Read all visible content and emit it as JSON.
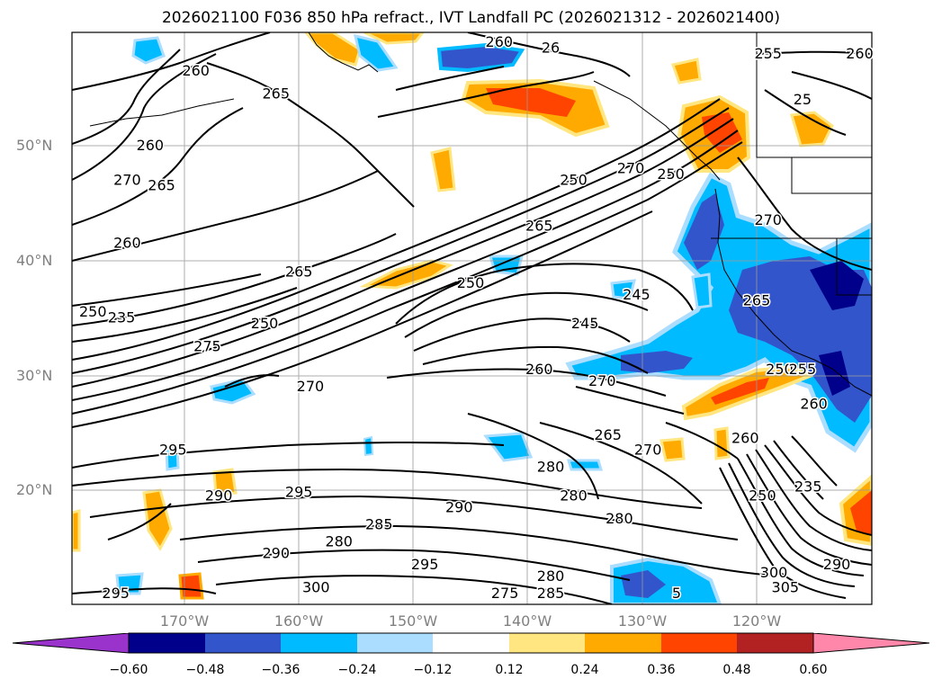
{
  "title": "2026021100 F036 850 hPa refract., IVT Landfall PC (2026021312 - 2026021400)",
  "lat_labels": [
    "50°N",
    "40°N",
    "30°N",
    "20°N"
  ],
  "lon_labels": [
    "170°W",
    "160°W",
    "150°W",
    "140°W",
    "130°W",
    "120°W"
  ],
  "colorbar": {
    "ticks": [
      "−0.60",
      "−0.48",
      "−0.36",
      "−0.24",
      "−0.12",
      "0.12",
      "0.24",
      "0.36",
      "0.48",
      "0.60"
    ],
    "colors": [
      "#9933cc",
      "#00008b",
      "#3355cc",
      "#00bbff",
      "#aaddff",
      "#ffffff",
      "#ffe680",
      "#ffaa00",
      "#ff4400",
      "#b22222",
      "#ff88aa"
    ]
  },
  "contour_labels": [
    {
      "text": "260",
      "lon": -169,
      "lat": 56.5
    },
    {
      "text": "265",
      "lon": -162,
      "lat": 54.5
    },
    {
      "text": "260",
      "lon": -173,
      "lat": 50
    },
    {
      "text": "270",
      "lon": -175,
      "lat": 47
    },
    {
      "text": "265",
      "lon": -172,
      "lat": 46.5
    },
    {
      "text": "260",
      "lon": -175,
      "lat": 41.5
    },
    {
      "text": "265",
      "lon": -160,
      "lat": 39
    },
    {
      "text": "250",
      "lon": -178,
      "lat": 35.5
    },
    {
      "text": "235",
      "lon": -175.5,
      "lat": 35
    },
    {
      "text": "250",
      "lon": -163,
      "lat": 34.5
    },
    {
      "text": "275",
      "lon": -168,
      "lat": 32.5
    },
    {
      "text": "270",
      "lon": -159,
      "lat": 29
    },
    {
      "text": "295",
      "lon": -171,
      "lat": 23.5
    },
    {
      "text": "290",
      "lon": -167,
      "lat": 19.5
    },
    {
      "text": "295",
      "lon": -160,
      "lat": 19.8
    },
    {
      "text": "285",
      "lon": -153,
      "lat": 17
    },
    {
      "text": "280",
      "lon": -156.5,
      "lat": 15.5
    },
    {
      "text": "290",
      "lon": -162,
      "lat": 14.5
    },
    {
      "text": "290",
      "lon": -146,
      "lat": 18.5
    },
    {
      "text": "295",
      "lon": -149,
      "lat": 13.5
    },
    {
      "text": "300",
      "lon": -158.5,
      "lat": 11.5
    },
    {
      "text": "295",
      "lon": -176,
      "lat": 11
    },
    {
      "text": "275",
      "lon": -142,
      "lat": 11
    },
    {
      "text": "280",
      "lon": -138,
      "lat": 12.5
    },
    {
      "text": "285",
      "lon": -138,
      "lat": 11
    },
    {
      "text": "280",
      "lon": -136,
      "lat": 19.5
    },
    {
      "text": "280",
      "lon": -138,
      "lat": 22
    },
    {
      "text": "280",
      "lon": -132,
      "lat": 17.5
    },
    {
      "text": "265",
      "lon": -133,
      "lat": 24.8
    },
    {
      "text": "270",
      "lon": -129.5,
      "lat": 23.5
    },
    {
      "text": "270",
      "lon": -133.5,
      "lat": 29.5
    },
    {
      "text": "260",
      "lon": -139,
      "lat": 30.5
    },
    {
      "text": "245",
      "lon": -135,
      "lat": 34.5
    },
    {
      "text": "245",
      "lon": -130.5,
      "lat": 37
    },
    {
      "text": "250",
      "lon": -145,
      "lat": 38
    },
    {
      "text": "265",
      "lon": -139,
      "lat": 43
    },
    {
      "text": "250",
      "lon": -136,
      "lat": 47
    },
    {
      "text": "270",
      "lon": -131,
      "lat": 48
    },
    {
      "text": "250",
      "lon": -127.5,
      "lat": 47.5
    },
    {
      "text": "260",
      "lon": -142.5,
      "lat": 59
    },
    {
      "text": "26",
      "lon": -138,
      "lat": 58.5
    },
    {
      "text": "255",
      "lon": -119,
      "lat": 58
    },
    {
      "text": "260",
      "lon": -111,
      "lat": 58
    },
    {
      "text": "25",
      "lon": -116,
      "lat": 54
    },
    {
      "text": "270",
      "lon": -119,
      "lat": 43.5
    },
    {
      "text": "265",
      "lon": -120,
      "lat": 36.5
    },
    {
      "text": "250",
      "lon": -118,
      "lat": 30.5
    },
    {
      "text": "255",
      "lon": -116,
      "lat": 30.5
    },
    {
      "text": "260",
      "lon": -121,
      "lat": 24.5
    },
    {
      "text": "260",
      "lon": -115,
      "lat": 27.5
    },
    {
      "text": "235",
      "lon": -115.5,
      "lat": 20.3
    },
    {
      "text": "250",
      "lon": -119.5,
      "lat": 19.5
    },
    {
      "text": "300",
      "lon": -118.5,
      "lat": 12.8
    },
    {
      "text": "305",
      "lon": -117.5,
      "lat": 11.5
    },
    {
      "text": "290",
      "lon": -113,
      "lat": 13.5
    },
    {
      "text": "5",
      "lon": -127,
      "lat": 11
    }
  ]
}
